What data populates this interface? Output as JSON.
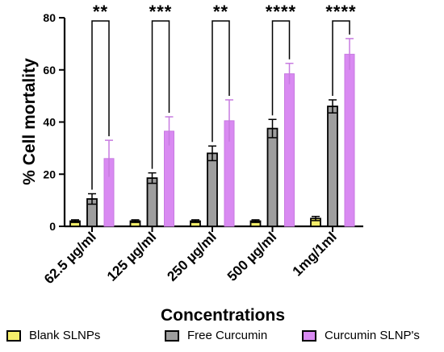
{
  "chart_data": {
    "type": "bar",
    "title": "",
    "xlabel": "Concentrations",
    "ylabel": "% Cell mortality",
    "ylim": [
      0,
      80
    ],
    "yticks": [
      "0",
      "20",
      "40",
      "60",
      "80"
    ],
    "categories": [
      "62.5 µg/ml",
      "125 µg/ml",
      "250 µg/ml",
      "500 µg/ml",
      "1mg/1ml"
    ],
    "series": [
      {
        "name": "Blank SLNPs",
        "color": "#f5ee6a",
        "values": [
          2.0,
          2.0,
          2.0,
          2.0,
          3.0
        ],
        "errors": [
          0.5,
          0.5,
          0.5,
          0.5,
          0.8
        ]
      },
      {
        "name": "Free Curcumin",
        "color": "#9e9e9e",
        "values": [
          10.5,
          18.5,
          28.0,
          37.5,
          46.0
        ],
        "errors": [
          2.0,
          2.0,
          2.8,
          3.5,
          2.5
        ]
      },
      {
        "name": "Curcumin SLNP's",
        "color": "#d98af2",
        "values": [
          26.0,
          36.5,
          40.5,
          58.5,
          66.0
        ],
        "errors": [
          7.0,
          5.5,
          8.0,
          4.0,
          6.0
        ]
      }
    ],
    "significance": [
      "**",
      "***",
      "**",
      "****",
      "****"
    ],
    "legend_position": "bottom",
    "grid": false
  }
}
